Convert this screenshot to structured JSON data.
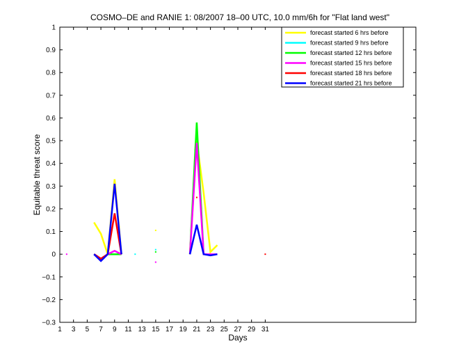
{
  "chart_data": {
    "type": "line",
    "title": "COSMO–DE and RANIE 1: 08/2007 18–00 UTC, 10.0 mm/6h for \"Flat land west\"",
    "xlabel": "Days",
    "ylabel": "Equitable threat score",
    "xlim": [
      1,
      53
    ],
    "ylim": [
      -0.3,
      1
    ],
    "x_ticks": [
      1,
      3,
      5,
      7,
      9,
      11,
      13,
      15,
      17,
      19,
      21,
      23,
      25,
      27,
      29,
      31
    ],
    "y_ticks": [
      -0.3,
      -0.2,
      -0.1,
      0,
      0.1,
      0.2,
      0.3,
      0.4,
      0.5,
      0.6,
      0.7,
      0.8,
      0.9,
      1
    ],
    "y_tick_labels": [
      "−0.3",
      "−0.2",
      "−0.1",
      "0",
      "0.1",
      "0.2",
      "0.3",
      "0.4",
      "0.5",
      "0.6",
      "0.7",
      "0.8",
      "0.9",
      "1"
    ],
    "grid": false,
    "legend_position": "top-right",
    "series": [
      {
        "name": "forecast started 6 hrs before",
        "color": "#ffff00",
        "segments": [
          {
            "x": [
              6,
              7,
              8,
              9,
              10
            ],
            "y": [
              0.14,
              0.09,
              0.0,
              0.33,
              0.0
            ]
          },
          {
            "x": [
              20,
              21,
              22,
              23,
              24
            ],
            "y": [
              0.0,
              0.5,
              0.27,
              0.01,
              0.04
            ]
          }
        ],
        "points": [
          {
            "x": 15,
            "y": 0.105
          }
        ]
      },
      {
        "name": "forecast started 9 hrs before",
        "color": "#00ffff",
        "segments": [
          {
            "x": [
              6,
              7,
              8,
              9,
              10
            ],
            "y": [
              0.0,
              -0.02,
              0.0,
              0.0,
              0.0
            ]
          }
        ],
        "points": [
          {
            "x": 12,
            "y": 0.0
          },
          {
            "x": 15,
            "y": 0.02
          }
        ]
      },
      {
        "name": "forecast started 12 hrs before",
        "color": "#00ff00",
        "segments": [
          {
            "x": [
              6,
              7,
              8,
              9,
              10
            ],
            "y": [
              0.0,
              -0.02,
              0.0,
              0.0,
              0.0
            ]
          },
          {
            "x": [
              20,
              21,
              22,
              23,
              24
            ],
            "y": [
              0.0,
              0.58,
              0.0,
              0.0,
              0.0
            ]
          }
        ],
        "points": [
          {
            "x": 15,
            "y": 0.01
          }
        ]
      },
      {
        "name": "forecast started 15 hrs before",
        "color": "#ff00ff",
        "segments": [
          {
            "x": [
              6,
              7,
              8,
              9,
              10
            ],
            "y": [
              0.0,
              -0.02,
              0.0,
              0.015,
              0.0
            ]
          },
          {
            "x": [
              20,
              21,
              22,
              23,
              24
            ],
            "y": [
              0.0,
              0.49,
              0.0,
              0.0,
              0.0
            ]
          }
        ],
        "points": [
          {
            "x": 2,
            "y": 0.0
          },
          {
            "x": 15,
            "y": -0.035
          }
        ]
      },
      {
        "name": "forecast started 18 hrs before",
        "color": "#ff0000",
        "segments": [
          {
            "x": [
              6,
              7,
              8,
              9,
              10
            ],
            "y": [
              0.0,
              -0.02,
              0.0,
              0.18,
              0.0
            ]
          }
        ],
        "points": [
          {
            "x": 21,
            "y": 0.25
          },
          {
            "x": 31,
            "y": 0.0
          }
        ]
      },
      {
        "name": "forecast started 21 hrs before",
        "color": "#0000ff",
        "segments": [
          {
            "x": [
              6,
              7,
              8,
              9,
              10
            ],
            "y": [
              0.0,
              -0.03,
              0.0,
              0.31,
              0.0
            ]
          },
          {
            "x": [
              20,
              21,
              22,
              23,
              24
            ],
            "y": [
              0.0,
              0.13,
              0.0,
              -0.005,
              0.0
            ]
          }
        ],
        "points": []
      }
    ]
  }
}
